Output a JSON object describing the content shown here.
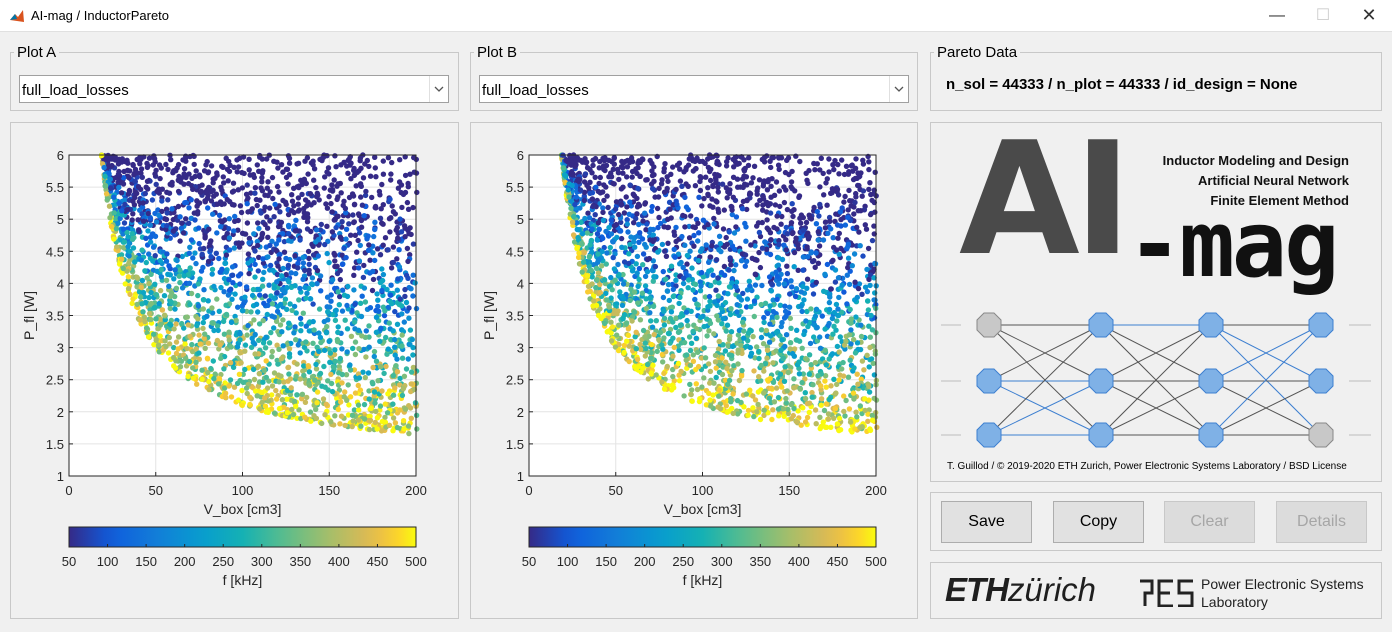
{
  "window": {
    "title": "AI-mag / InductorPareto",
    "min": "—",
    "max": "☐",
    "close": "✕"
  },
  "plotA": {
    "title": "Plot A",
    "selected": "full_load_losses"
  },
  "plotB": {
    "title": "Plot B",
    "selected": "full_load_losses"
  },
  "pareto": {
    "title": "Pareto Data",
    "info": "n_sol = 44333 / n_plot = 44333 / id_design = None"
  },
  "logo": {
    "big": "AI",
    "dash_mag": "-mag",
    "line1": "Inductor Modeling and Design",
    "line2": "Artificial Neural Network",
    "line3": "Finite Element Method",
    "credit": "T. Guillod / © 2019-2020 ETH Zurich, Power Electronic Systems Laboratory / BSD License"
  },
  "buttons": {
    "save": "Save",
    "copy": "Copy",
    "clear": "Clear",
    "details": "Details"
  },
  "footer": {
    "eth_bold": "ETH",
    "eth_light": "zürich",
    "pes_line1": "Power Electronic Systems",
    "pes_line2": "Laboratory"
  },
  "chart_data": [
    {
      "type": "scatter",
      "xlabel": "V_box [cm3]",
      "ylabel": "P_fl [W]",
      "xlim": [
        0,
        200
      ],
      "ylim": [
        1,
        6
      ],
      "xticks": [
        "0",
        "50",
        "100",
        "150",
        "200"
      ],
      "yticks": [
        "1",
        "1.5",
        "2",
        "2.5",
        "3",
        "3.5",
        "4",
        "4.5",
        "5",
        "5.5",
        "6"
      ],
      "grid": true,
      "colorbar": {
        "label": "f [kHz]",
        "range": [
          50,
          500
        ],
        "ticks": [
          "50",
          "100",
          "150",
          "200",
          "250",
          "300",
          "350",
          "400",
          "450",
          "500"
        ],
        "colormap": "parula"
      },
      "points_note": "dense cloud of 44333 designs; lower-left boundary follows y ≈ 1.2 + 90/x"
    },
    {
      "type": "scatter",
      "xlabel": "V_box [cm3]",
      "ylabel": "P_fl [W]",
      "xlim": [
        0,
        200
      ],
      "ylim": [
        1,
        6
      ],
      "xticks": [
        "0",
        "50",
        "100",
        "150",
        "200"
      ],
      "yticks": [
        "1",
        "1.5",
        "2",
        "2.5",
        "3",
        "3.5",
        "4",
        "4.5",
        "5",
        "5.5",
        "6"
      ],
      "grid": true,
      "colorbar": {
        "label": "f [kHz]",
        "range": [
          50,
          500
        ],
        "ticks": [
          "50",
          "100",
          "150",
          "200",
          "250",
          "300",
          "350",
          "400",
          "450",
          "500"
        ],
        "colormap": "parula"
      },
      "points_note": "dense cloud of 44333 designs; lower-left boundary follows y ≈ 1.2 + 90/x"
    }
  ]
}
